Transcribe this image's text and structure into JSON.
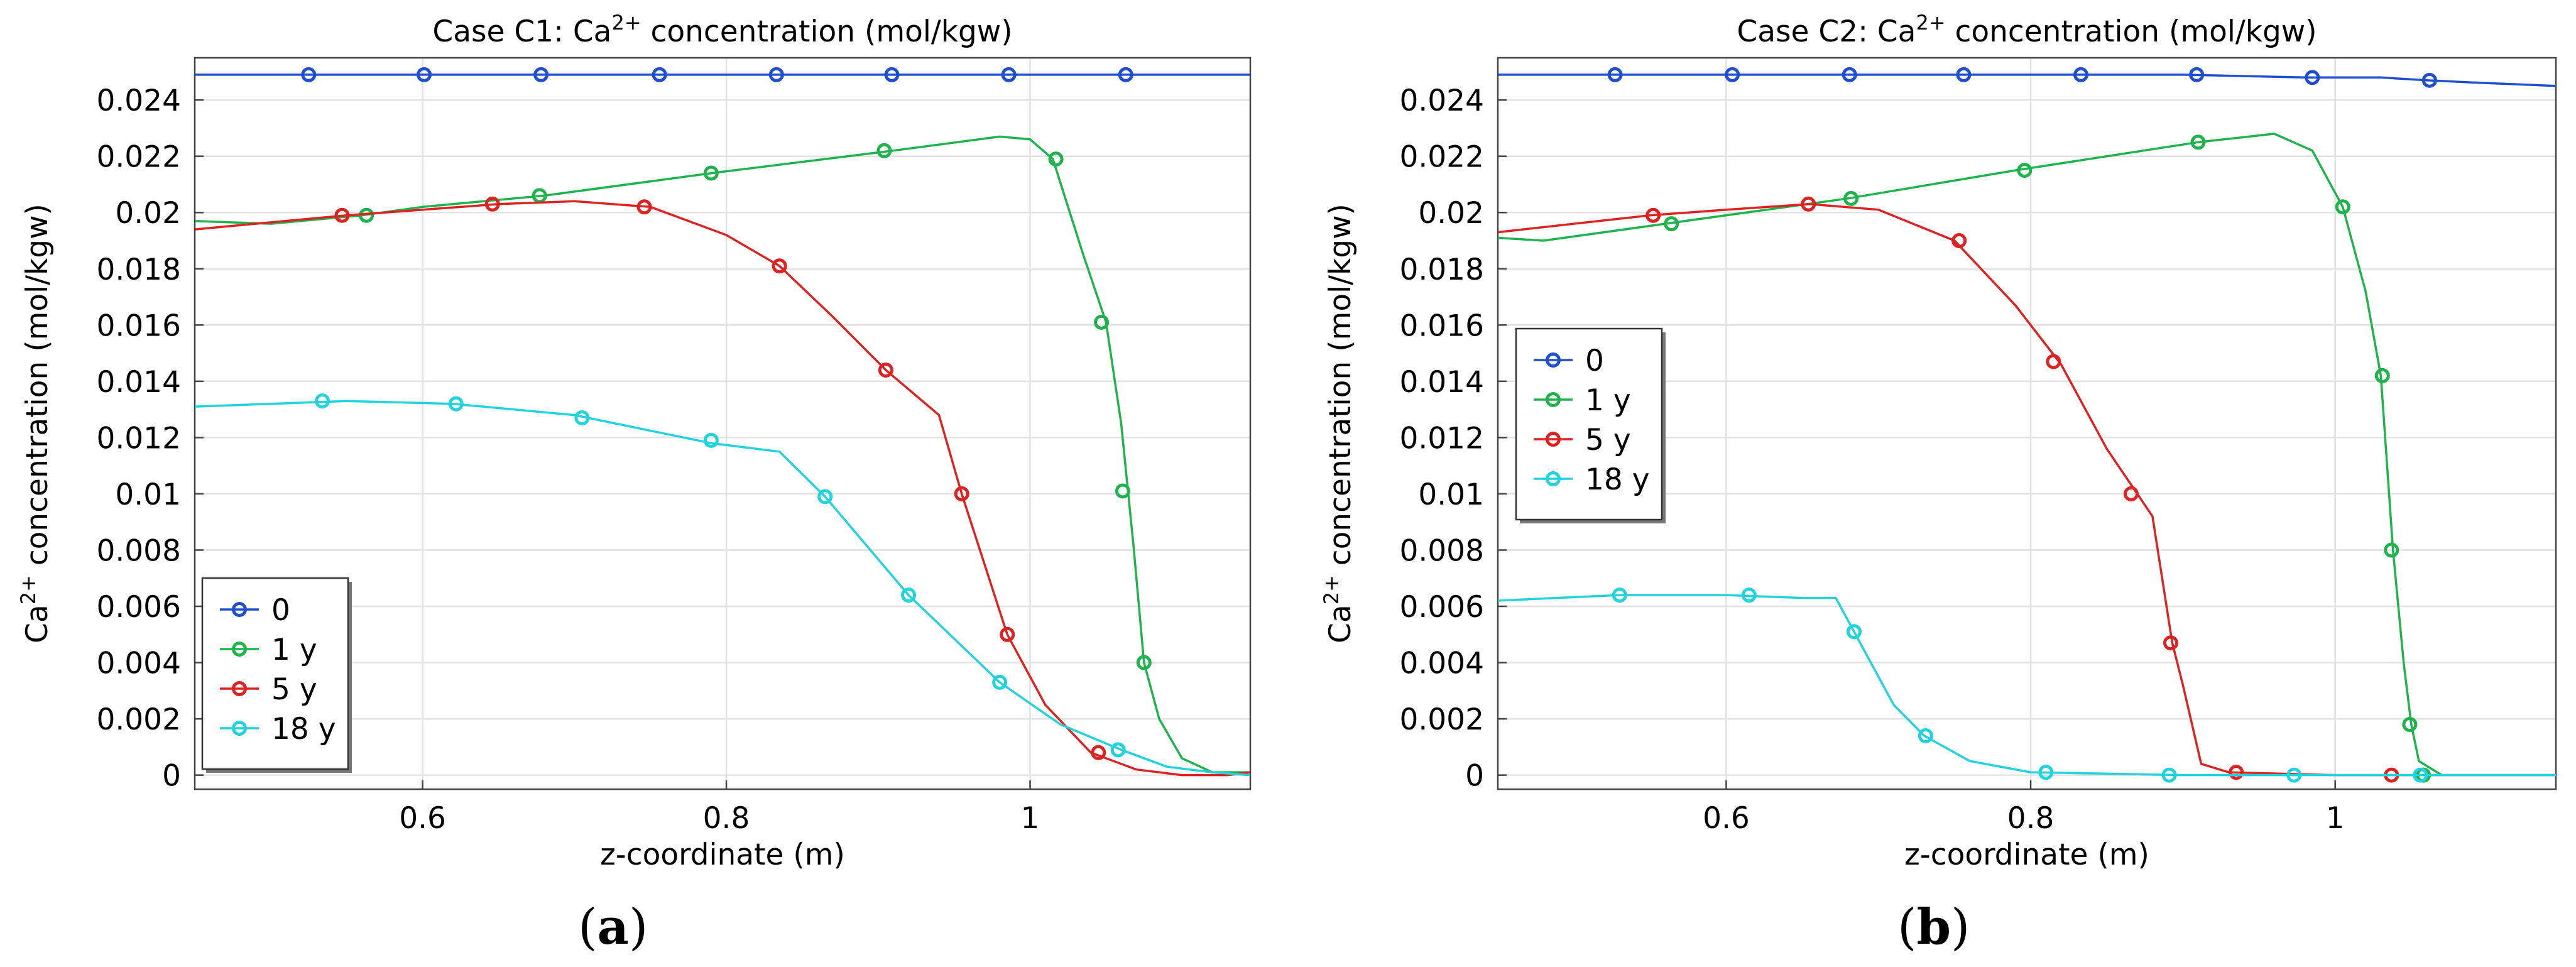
{
  "chart_data": [
    {
      "type": "line",
      "panel_label": "(a)",
      "panel_letter": "a",
      "title_prefix": "Case C1: Ca",
      "title_sup": "2+",
      "title_suffix": " concentration (mol/kgw)",
      "xlabel": "z-coordinate (m)",
      "ylabel_prefix": "Ca",
      "ylabel_sup": "2+",
      "ylabel_suffix": " concentration (mol/kgw)",
      "xlim": [
        0.45,
        1.145
      ],
      "ylim": [
        -0.0005,
        0.0255
      ],
      "xticks": [
        0.6,
        0.8,
        1.0
      ],
      "xtick_labels": [
        "0.6",
        "0.8",
        "1"
      ],
      "yticks": [
        0,
        0.002,
        0.004,
        0.006,
        0.008,
        0.01,
        0.012,
        0.014,
        0.016,
        0.018,
        0.02,
        0.022,
        0.024
      ],
      "ytick_labels": [
        "0",
        "0.002",
        "0.004",
        "0.006",
        "0.008",
        "0.01",
        "0.012",
        "0.014",
        "0.016",
        "0.018",
        "0.02",
        "0.022",
        "0.024"
      ],
      "legend_position": "lower-left",
      "series": [
        {
          "name": "0",
          "color": "#1f4fcc",
          "x": [
            0.45,
            1.145
          ],
          "y": [
            0.0249,
            0.0249
          ],
          "markers_x": [
            0.525,
            0.601,
            0.678,
            0.756,
            0.833,
            0.909,
            0.986,
            1.063
          ],
          "markers_y": [
            0.0249,
            0.0249,
            0.0249,
            0.0249,
            0.0249,
            0.0249,
            0.0249,
            0.0249
          ]
        },
        {
          "name": "1 y",
          "color": "#1fb34d",
          "x": [
            0.45,
            0.5,
            0.56,
            0.6,
            0.68,
            0.79,
            0.91,
            0.98,
            1.0,
            1.015,
            1.035,
            1.05,
            1.06,
            1.068,
            1.075,
            1.085,
            1.1,
            1.12,
            1.145
          ],
          "y": [
            0.0197,
            0.0196,
            0.0199,
            0.0202,
            0.0206,
            0.0214,
            0.0222,
            0.0227,
            0.0226,
            0.0219,
            0.0185,
            0.0161,
            0.0125,
            0.0082,
            0.004,
            0.002,
            0.0006,
            0.0001,
            0.0001
          ],
          "markers_x": [
            0.563,
            0.677,
            0.79,
            0.904,
            1.017,
            1.047,
            1.061,
            1.075
          ],
          "markers_y": [
            0.0199,
            0.0206,
            0.0214,
            0.0222,
            0.0219,
            0.0161,
            0.0101,
            0.004
          ]
        },
        {
          "name": "5 y",
          "color": "#dd2222",
          "x": [
            0.45,
            0.55,
            0.6,
            0.65,
            0.7,
            0.75,
            0.8,
            0.835,
            0.87,
            0.905,
            0.94,
            0.955,
            0.985,
            1.01,
            1.04,
            1.07,
            1.1,
            1.13,
            1.145
          ],
          "y": [
            0.0194,
            0.0199,
            0.0201,
            0.0203,
            0.0204,
            0.0202,
            0.0192,
            0.0181,
            0.0163,
            0.0144,
            0.0128,
            0.01,
            0.005,
            0.0025,
            0.0008,
            0.0002,
            0.0,
            0.0,
            0.0001
          ],
          "markers_x": [
            0.547,
            0.646,
            0.746,
            0.835,
            0.905,
            0.955,
            0.985,
            1.045
          ],
          "markers_y": [
            0.0199,
            0.0203,
            0.0202,
            0.0181,
            0.0144,
            0.01,
            0.005,
            0.0008
          ]
        },
        {
          "name": "18 y",
          "color": "#22d3dd",
          "x": [
            0.45,
            0.5,
            0.55,
            0.62,
            0.7,
            0.79,
            0.835,
            0.865,
            0.92,
            0.98,
            1.02,
            1.06,
            1.09,
            1.12,
            1.145
          ],
          "y": [
            0.0131,
            0.0132,
            0.0133,
            0.0132,
            0.0128,
            0.0118,
            0.0115,
            0.0099,
            0.0064,
            0.0033,
            0.0018,
            0.0009,
            0.0003,
            0.0001,
            0.0
          ],
          "markers_x": [
            0.534,
            0.622,
            0.705,
            0.79,
            0.865,
            0.92,
            0.98,
            1.058
          ],
          "markers_y": [
            0.0133,
            0.0132,
            0.0127,
            0.0119,
            0.0099,
            0.0064,
            0.0033,
            0.0009
          ]
        }
      ]
    },
    {
      "type": "line",
      "panel_label": "(b)",
      "panel_letter": "b",
      "title_prefix": "Case C2: Ca",
      "title_sup": "2+",
      "title_suffix": " concentration (mol/kgw)",
      "xlabel": "z-coordinate (m)",
      "ylabel_prefix": "Ca",
      "ylabel_sup": "2+",
      "ylabel_suffix": " concentration (mol/kgw)",
      "xlim": [
        0.45,
        1.145
      ],
      "ylim": [
        -0.0005,
        0.0255
      ],
      "xticks": [
        0.6,
        0.8,
        1.0
      ],
      "xtick_labels": [
        "0.6",
        "0.8",
        "1"
      ],
      "yticks": [
        0,
        0.002,
        0.004,
        0.006,
        0.008,
        0.01,
        0.012,
        0.014,
        0.016,
        0.018,
        0.02,
        0.022,
        0.024
      ],
      "ytick_labels": [
        "0",
        "0.002",
        "0.004",
        "0.006",
        "0.008",
        "0.01",
        "0.012",
        "0.014",
        "0.016",
        "0.018",
        "0.02",
        "0.022",
        "0.024"
      ],
      "legend_position": "middle-left",
      "series": [
        {
          "name": "0",
          "color": "#1f4fcc",
          "x": [
            0.45,
            0.7,
            0.9,
            0.98,
            1.03,
            1.06,
            1.1,
            1.145
          ],
          "y": [
            0.0249,
            0.0249,
            0.0249,
            0.0248,
            0.0248,
            0.0247,
            0.0246,
            0.0245
          ],
          "markers_x": [
            0.527,
            0.604,
            0.681,
            0.756,
            0.833,
            0.909,
            0.985,
            1.062
          ],
          "markers_y": [
            0.0249,
            0.0249,
            0.0249,
            0.0249,
            0.0249,
            0.0249,
            0.0248,
            0.0247
          ]
        },
        {
          "name": "1 y",
          "color": "#1fb34d",
          "x": [
            0.45,
            0.48,
            0.56,
            0.68,
            0.79,
            0.91,
            0.96,
            0.985,
            1.005,
            1.02,
            1.03,
            1.038,
            1.045,
            1.05,
            1.055,
            1.07,
            1.145
          ],
          "y": [
            0.0191,
            0.019,
            0.0196,
            0.0205,
            0.0215,
            0.0225,
            0.0228,
            0.0222,
            0.0202,
            0.0172,
            0.0142,
            0.008,
            0.004,
            0.0018,
            0.0005,
            0.0,
            0.0
          ],
          "markers_x": [
            0.564,
            0.682,
            0.796,
            0.91,
            1.005,
            1.031,
            1.037,
            1.049,
            1.058
          ],
          "markers_y": [
            0.0196,
            0.0205,
            0.0215,
            0.0225,
            0.0202,
            0.0142,
            0.008,
            0.0018,
            0.0
          ]
        },
        {
          "name": "5 y",
          "color": "#dd2222",
          "x": [
            0.45,
            0.55,
            0.6,
            0.655,
            0.7,
            0.75,
            0.79,
            0.82,
            0.85,
            0.87,
            0.88,
            0.893,
            0.9,
            0.912,
            0.93,
            1.0,
            1.145
          ],
          "y": [
            0.0193,
            0.0199,
            0.0201,
            0.0203,
            0.0201,
            0.019,
            0.0167,
            0.0146,
            0.0116,
            0.01,
            0.0092,
            0.0047,
            0.0032,
            0.0004,
            0.0001,
            0.0,
            0.0
          ],
          "markers_x": [
            0.552,
            0.654,
            0.753,
            0.815,
            0.866,
            0.892,
            0.935,
            1.037
          ],
          "markers_y": [
            0.0199,
            0.0203,
            0.019,
            0.0147,
            0.01,
            0.0047,
            0.0001,
            0.0
          ]
        },
        {
          "name": "18 y",
          "color": "#22d3dd",
          "x": [
            0.45,
            0.53,
            0.6,
            0.65,
            0.672,
            0.685,
            0.71,
            0.73,
            0.76,
            0.8,
            0.9,
            1.145
          ],
          "y": [
            0.0062,
            0.0064,
            0.0064,
            0.0063,
            0.0063,
            0.005,
            0.0025,
            0.0014,
            0.0005,
            0.0001,
            0.0,
            0.0
          ],
          "markers_x": [
            0.53,
            0.615,
            0.684,
            0.731,
            0.81,
            0.891,
            0.973,
            1.056
          ],
          "markers_y": [
            0.0064,
            0.0064,
            0.0051,
            0.0014,
            0.0001,
            0.0,
            0.0,
            0.0
          ]
        }
      ]
    }
  ]
}
